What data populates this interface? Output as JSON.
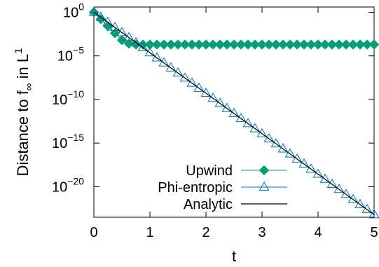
{
  "chart_data": {
    "type": "line",
    "xlabel": "t",
    "ylabel": "Distance to f∞ in L1",
    "ylabel_parts": {
      "main": "Distance to f",
      "subscript": "∞",
      "mid": " in L",
      "superscript": "1"
    },
    "xlim": [
      0,
      5
    ],
    "ylim_log10": [
      -23.5,
      0.6
    ],
    "y_scale": "log",
    "grid": false,
    "legend_position": "bottom-right",
    "x_ticks": [
      {
        "value": 0,
        "label": "0"
      },
      {
        "value": 1,
        "label": "1"
      },
      {
        "value": 2,
        "label": "2"
      },
      {
        "value": 3,
        "label": "3"
      },
      {
        "value": 4,
        "label": "4"
      },
      {
        "value": 5,
        "label": "5"
      }
    ],
    "y_ticks": [
      {
        "exp": 0,
        "base": "10",
        "sup": "0"
      },
      {
        "exp": -5,
        "base": "10",
        "sup": "−5"
      },
      {
        "exp": -10,
        "base": "10",
        "sup": "−10"
      },
      {
        "exp": -15,
        "base": "10",
        "sup": "−15"
      },
      {
        "exp": -20,
        "base": "10",
        "sup": "−20"
      }
    ],
    "series": [
      {
        "name": "Upwind",
        "color": "#009e73",
        "marker": "filled-diamond",
        "x": [
          0,
          0.125,
          0.25,
          0.375,
          0.5,
          0.625,
          0.75,
          0.875,
          1.0,
          1.125,
          1.25,
          1.375,
          1.5,
          1.625,
          1.75,
          1.875,
          2.0,
          2.125,
          2.25,
          2.375,
          2.5,
          2.625,
          2.75,
          2.875,
          3.0,
          3.125,
          3.25,
          3.375,
          3.5,
          3.625,
          3.75,
          3.875,
          4.0,
          4.125,
          4.25,
          4.375,
          4.5,
          4.625,
          4.75,
          4.875,
          5.0
        ],
        "log10_y": [
          0,
          -0.8,
          -1.6,
          -2.4,
          -3.2,
          -3.6,
          -3.7,
          -3.7,
          -3.7,
          -3.7,
          -3.7,
          -3.7,
          -3.7,
          -3.7,
          -3.7,
          -3.7,
          -3.7,
          -3.7,
          -3.7,
          -3.7,
          -3.7,
          -3.7,
          -3.7,
          -3.7,
          -3.7,
          -3.7,
          -3.7,
          -3.7,
          -3.7,
          -3.7,
          -3.7,
          -3.7,
          -3.7,
          -3.7,
          -3.7,
          -3.7,
          -3.7,
          -3.7,
          -3.7,
          -3.7,
          -3.7
        ]
      },
      {
        "name": "Phi-entropic",
        "color": "#0072b2",
        "marker": "open-triangle",
        "x": [
          0,
          0.125,
          0.25,
          0.375,
          0.5,
          0.625,
          0.75,
          0.875,
          1.0,
          1.125,
          1.25,
          1.375,
          1.5,
          1.625,
          1.75,
          1.875,
          2.0,
          2.125,
          2.25,
          2.375,
          2.5,
          2.625,
          2.75,
          2.875,
          3.0,
          3.125,
          3.25,
          3.375,
          3.5,
          3.625,
          3.75,
          3.875,
          4.0,
          4.125,
          4.25,
          4.375,
          4.5,
          4.625,
          4.75,
          4.875,
          5.0
        ],
        "log10_y": [
          0,
          -0.58,
          -1.16,
          -1.74,
          -2.32,
          -2.9,
          -3.48,
          -4.06,
          -4.64,
          -5.22,
          -5.8,
          -6.38,
          -6.96,
          -7.54,
          -8.12,
          -8.7,
          -9.28,
          -9.86,
          -10.44,
          -11.02,
          -11.6,
          -12.18,
          -12.76,
          -13.34,
          -13.92,
          -14.5,
          -15.08,
          -15.66,
          -16.24,
          -16.82,
          -17.4,
          -17.98,
          -18.56,
          -19.14,
          -19.72,
          -20.3,
          -20.88,
          -21.46,
          -22.04,
          -22.62,
          -23.2
        ]
      },
      {
        "name": "Analytic",
        "color": "#000000",
        "marker": "none",
        "x": [
          0,
          5
        ],
        "log10_y": [
          0,
          -23.2
        ]
      }
    ]
  }
}
